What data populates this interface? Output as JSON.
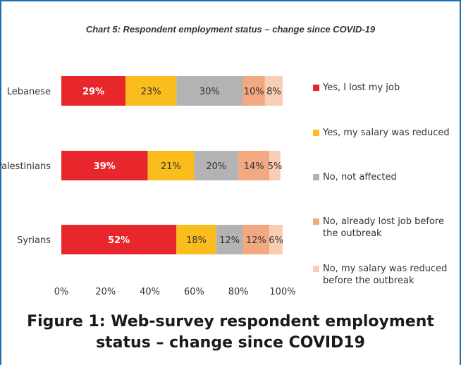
{
  "figure_caption": "Figure 1: Web-survey respondent employment status – change since COVID19",
  "chart_data": {
    "type": "bar",
    "orientation": "horizontal",
    "stacked": true,
    "title": "Chart 5: Respondent employment status – change since COVID-19",
    "categories": [
      "Lebanese",
      "Palestinians",
      "Syrians"
    ],
    "series": [
      {
        "name": "Yes, I lost my job",
        "color": "#e8272c",
        "values": [
          29,
          39,
          52
        ],
        "labels": [
          "29%",
          "39%",
          "52%"
        ]
      },
      {
        "name": "Yes, my salary was reduced",
        "color": "#fbbd1d",
        "values": [
          23,
          21,
          18
        ],
        "labels": [
          "23%",
          "21%",
          "18%"
        ]
      },
      {
        "name": "No, not affected",
        "color": "#b3b3b3",
        "values": [
          30,
          20,
          12
        ],
        "labels": [
          "30%",
          "20%",
          "12%"
        ]
      },
      {
        "name": "No, already lost job before the outbreak",
        "color": "#f2a880",
        "values": [
          10,
          14,
          12
        ],
        "labels": [
          "10%",
          "14%",
          "12%"
        ]
      },
      {
        "name": "No, my salary was reduced before the outbreak",
        "color": "#f9ccb5",
        "values": [
          8,
          5,
          6
        ],
        "labels": [
          "8%",
          "5%",
          "6%"
        ]
      }
    ],
    "x_ticks": [
      "0%",
      "20%",
      "40%",
      "60%",
      "80%",
      "100%"
    ],
    "xlim": [
      0,
      100
    ],
    "grid": false,
    "legend_position": "right"
  }
}
